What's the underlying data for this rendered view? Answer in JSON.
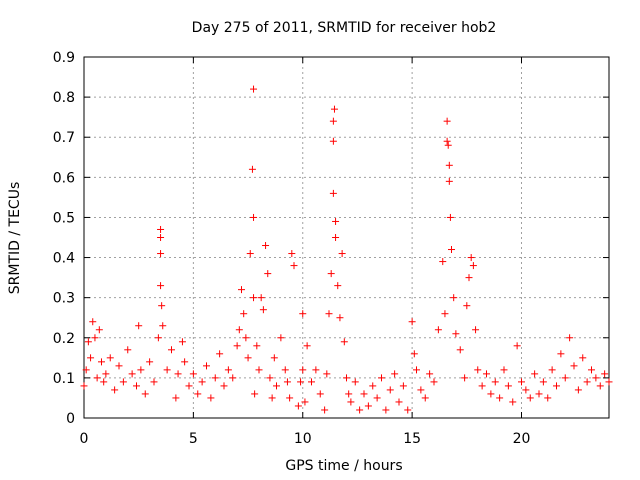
{
  "chart_data": {
    "type": "scatter",
    "title": "Day 275 of 2011, SRMTID for receiver hob2",
    "xlabel": "GPS time / hours",
    "ylabel": "SRMTID / TECUs",
    "xlim": [
      0,
      24
    ],
    "ylim": [
      0,
      0.9
    ],
    "xticks": [
      0,
      5,
      10,
      15,
      20
    ],
    "yticks": [
      0,
      0.1,
      0.2,
      0.3,
      0.4,
      0.5,
      0.6,
      0.7,
      0.8,
      0.9
    ],
    "xtick_labels": [
      "0",
      "5",
      "10",
      "15",
      "20"
    ],
    "ytick_labels": [
      "0",
      "0.1",
      "0.2",
      "0.3",
      "0.4",
      "0.5",
      "0.6",
      "0.7",
      "0.8",
      "0.9"
    ],
    "grid": true,
    "marker": "+",
    "color": "#ff0000",
    "series": [
      {
        "name": "SRMTID",
        "x": [
          0.0,
          0.1,
          0.2,
          0.3,
          0.4,
          0.5,
          0.6,
          0.7,
          0.8,
          0.9,
          1.0,
          1.2,
          1.4,
          1.6,
          1.8,
          2.0,
          2.2,
          2.4,
          2.5,
          2.6,
          2.8,
          3.0,
          3.2,
          3.4,
          3.5,
          3.5,
          3.5,
          3.5,
          3.55,
          3.6,
          3.8,
          4.0,
          4.2,
          4.3,
          4.5,
          4.6,
          4.8,
          5.0,
          5.2,
          5.4,
          5.6,
          5.8,
          6.0,
          6.2,
          6.4,
          6.6,
          6.8,
          7.0,
          7.1,
          7.2,
          7.3,
          7.4,
          7.5,
          7.6,
          7.7,
          7.75,
          7.75,
          7.75,
          7.8,
          7.9,
          8.0,
          8.1,
          8.2,
          8.3,
          8.4,
          8.5,
          8.6,
          8.7,
          8.8,
          9.0,
          9.2,
          9.3,
          9.4,
          9.5,
          9.6,
          9.8,
          9.9,
          10.0,
          10.0,
          10.1,
          10.2,
          10.4,
          10.6,
          10.8,
          11.0,
          11.1,
          11.2,
          11.3,
          11.4,
          11.4,
          11.4,
          11.45,
          11.5,
          11.5,
          11.6,
          11.7,
          11.8,
          11.9,
          12.0,
          12.1,
          12.2,
          12.4,
          12.6,
          12.8,
          13.0,
          13.2,
          13.4,
          13.6,
          13.8,
          14.0,
          14.2,
          14.4,
          14.6,
          14.8,
          15.0,
          15.1,
          15.2,
          15.4,
          15.6,
          15.8,
          16.0,
          16.2,
          16.4,
          16.5,
          16.6,
          16.6,
          16.65,
          16.7,
          16.7,
          16.75,
          16.8,
          16.9,
          17.0,
          17.2,
          17.4,
          17.5,
          17.6,
          17.7,
          17.8,
          17.9,
          18.0,
          18.2,
          18.4,
          18.6,
          18.8,
          19.0,
          19.2,
          19.4,
          19.6,
          19.8,
          20.0,
          20.2,
          20.4,
          20.6,
          20.8,
          21.0,
          21.2,
          21.4,
          21.6,
          21.8,
          22.0,
          22.2,
          22.4,
          22.6,
          22.8,
          23.0,
          23.2,
          23.4,
          23.6,
          23.8,
          24.0
        ],
        "y": [
          0.08,
          0.12,
          0.19,
          0.15,
          0.24,
          0.2,
          0.1,
          0.22,
          0.14,
          0.09,
          0.11,
          0.15,
          0.07,
          0.13,
          0.09,
          0.17,
          0.11,
          0.08,
          0.23,
          0.12,
          0.06,
          0.14,
          0.09,
          0.2,
          0.47,
          0.45,
          0.41,
          0.33,
          0.28,
          0.23,
          0.12,
          0.17,
          0.05,
          0.11,
          0.19,
          0.14,
          0.08,
          0.11,
          0.06,
          0.09,
          0.13,
          0.05,
          0.1,
          0.16,
          0.08,
          0.12,
          0.1,
          0.18,
          0.22,
          0.32,
          0.26,
          0.2,
          0.15,
          0.41,
          0.62,
          0.82,
          0.5,
          0.3,
          0.06,
          0.18,
          0.12,
          0.3,
          0.27,
          0.43,
          0.36,
          0.1,
          0.05,
          0.15,
          0.08,
          0.2,
          0.12,
          0.09,
          0.05,
          0.41,
          0.38,
          0.03,
          0.09,
          0.12,
          0.26,
          0.04,
          0.18,
          0.09,
          0.12,
          0.06,
          0.02,
          0.11,
          0.26,
          0.36,
          0.56,
          0.69,
          0.74,
          0.77,
          0.49,
          0.45,
          0.33,
          0.25,
          0.41,
          0.19,
          0.1,
          0.06,
          0.04,
          0.09,
          0.02,
          0.06,
          0.03,
          0.08,
          0.05,
          0.1,
          0.02,
          0.07,
          0.11,
          0.04,
          0.08,
          0.02,
          0.24,
          0.16,
          0.12,
          0.07,
          0.05,
          0.11,
          0.09,
          0.22,
          0.39,
          0.26,
          0.74,
          0.69,
          0.68,
          0.63,
          0.59,
          0.5,
          0.42,
          0.3,
          0.21,
          0.17,
          0.1,
          0.28,
          0.35,
          0.4,
          0.38,
          0.22,
          0.12,
          0.08,
          0.11,
          0.06,
          0.09,
          0.05,
          0.12,
          0.08,
          0.04,
          0.18,
          0.09,
          0.07,
          0.05,
          0.11,
          0.06,
          0.09,
          0.05,
          0.12,
          0.08,
          0.16,
          0.1,
          0.2,
          0.13,
          0.07,
          0.15,
          0.09,
          0.12,
          0.1,
          0.08,
          0.11,
          0.09
        ]
      }
    ]
  }
}
